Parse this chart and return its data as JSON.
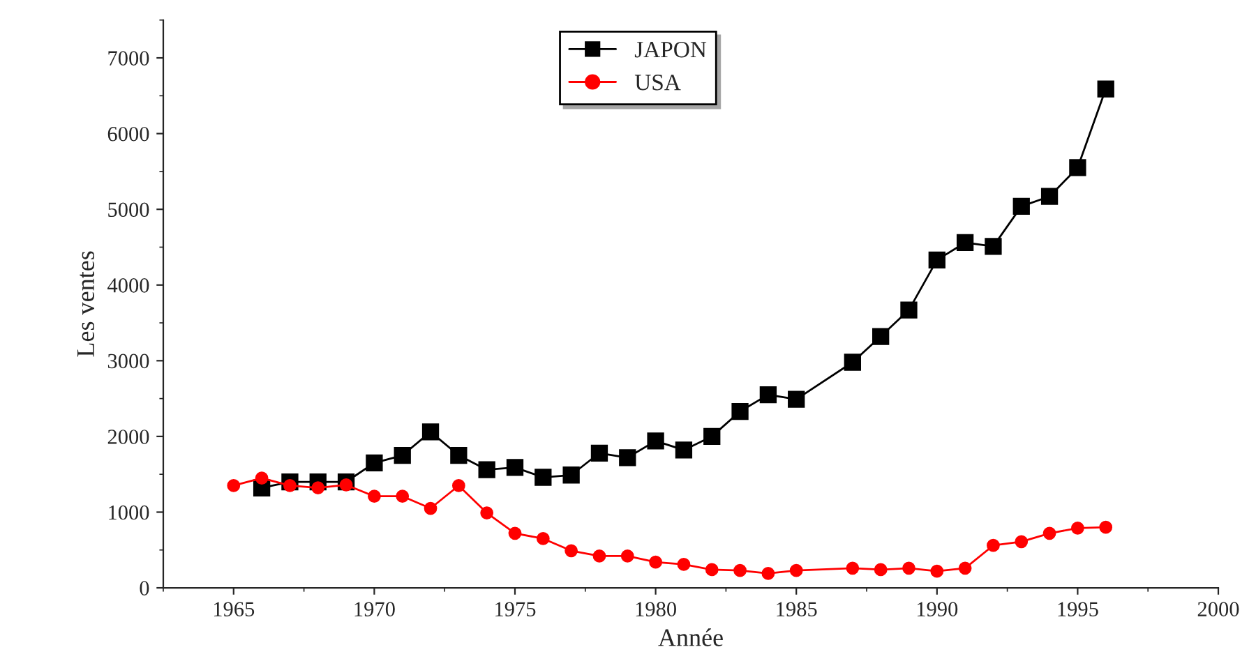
{
  "chart_data": {
    "type": "line",
    "xlabel": "Année",
    "ylabel": "Les ventes",
    "x": [
      1965,
      1966,
      1967,
      1968,
      1969,
      1970,
      1971,
      1972,
      1973,
      1974,
      1975,
      1976,
      1977,
      1978,
      1979,
      1980,
      1981,
      1982,
      1983,
      1984,
      1985,
      1987,
      1988,
      1989,
      1990,
      1991,
      1992,
      1993,
      1994,
      1995,
      1996
    ],
    "series": [
      {
        "name": "JAPON",
        "color": "#000000",
        "marker": "square",
        "values": [
          null,
          1320,
          1400,
          1400,
          1400,
          1650,
          1750,
          2060,
          1750,
          1560,
          1590,
          1460,
          1490,
          1780,
          1720,
          1940,
          1820,
          2000,
          2330,
          2550,
          2490,
          2980,
          3320,
          3670,
          4330,
          4560,
          4510,
          5040,
          5170,
          5550,
          6590
        ]
      },
      {
        "name": "USA",
        "color": "#ff0000",
        "marker": "circle",
        "values": [
          1350,
          1450,
          1350,
          1320,
          1360,
          1210,
          1210,
          1050,
          1350,
          990,
          720,
          650,
          490,
          420,
          420,
          340,
          310,
          240,
          230,
          190,
          230,
          260,
          240,
          260,
          220,
          260,
          560,
          610,
          720,
          790,
          800
        ]
      }
    ],
    "xlim": [
      1962.5,
      2000
    ],
    "xticks": [
      1965,
      1970,
      1975,
      1980,
      1985,
      1990,
      1995,
      2000
    ],
    "ylim": [
      0,
      7500
    ],
    "yticks": [
      0,
      1000,
      2000,
      3000,
      4000,
      5000,
      6000,
      7000
    ],
    "grid": false,
    "legend": "top",
    "line_style": "solid"
  }
}
